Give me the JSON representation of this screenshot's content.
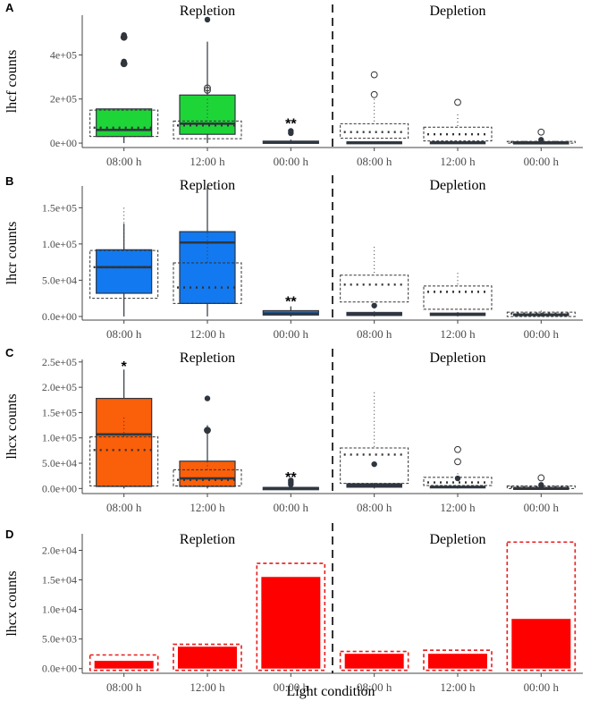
{
  "figure": {
    "xlabel": "Light condition"
  },
  "colors": {
    "lhcf": "#1ed538",
    "lhcr": "#1279f0",
    "lhcx": "#fa5f0a",
    "bar": "#ff0000",
    "bar_outline": "#e81c1c",
    "dark": "#2e3640",
    "axis": "#444444",
    "grid": "#e6e6e6"
  },
  "chart_data": [
    {
      "panel": "A",
      "type": "boxplot",
      "ylabel": "lhcf counts",
      "ylim": [
        -20000,
        580000
      ],
      "yticks": [
        0,
        200000,
        400000
      ],
      "ytick_labels": [
        "0e+00",
        "2e+05",
        "4e+05"
      ],
      "groups": [
        "Repletion",
        "Depletion"
      ],
      "categories": [
        "08:00 h",
        "12:00 h",
        "00:00 h",
        "08:00 h",
        "12:00 h",
        "00:00 h"
      ],
      "fill_color_key": "lhcf",
      "boxes": [
        {
          "q1": 30000,
          "median": 60000,
          "q3": 155000,
          "whislo": 0,
          "whishi": 155000,
          "outliers": [
            370000,
            360000,
            480000,
            490000
          ]
        },
        {
          "q1": 40000,
          "median": 88000,
          "q3": 218000,
          "whislo": 0,
          "whishi": 460000,
          "outliers": [
            560000
          ]
        },
        {
          "q1": 2000,
          "median": 5000,
          "q3": 9000,
          "whislo": 0,
          "whishi": 16000,
          "outliers": [
            45000,
            55000
          ]
        },
        {
          "q1": 1000,
          "median": 3000,
          "q3": 6000,
          "whislo": 0,
          "whishi": 7000,
          "outliers": []
        },
        {
          "q1": 1000,
          "median": 3000,
          "q3": 6000,
          "whislo": 0,
          "whishi": 7000,
          "outliers": []
        },
        {
          "q1": 1000,
          "median": 3000,
          "q3": 5000,
          "whislo": 0,
          "whishi": 6000,
          "outliers": [
            15000
          ]
        }
      ],
      "dotted_boxes": [
        {
          "q1": 30000,
          "median": 70000,
          "q3": 150000,
          "whislo": 0,
          "whishi": 150000,
          "outliers": [
            360000,
            480000
          ]
        },
        {
          "q1": 20000,
          "median": 80000,
          "q3": 100000,
          "whislo": 0,
          "whishi": 200000,
          "outliers": [
            240000,
            250000
          ]
        },
        null,
        {
          "q1": 22000,
          "median": 50000,
          "q3": 88000,
          "whislo": 0,
          "whishi": 200000,
          "outliers": [
            310000,
            220000
          ]
        },
        {
          "q1": 10000,
          "median": 40000,
          "q3": 72000,
          "whislo": 0,
          "whishi": 130000,
          "outliers": [
            185000
          ]
        },
        {
          "q1": 0,
          "median": 5000,
          "q3": 8000,
          "whislo": 0,
          "whishi": 9000,
          "outliers": [
            50000
          ]
        }
      ],
      "annotations": [
        {
          "category_index": 2,
          "text": "**",
          "y": 100000
        }
      ]
    },
    {
      "panel": "B",
      "type": "boxplot",
      "ylabel": "lhcr counts",
      "ylim": [
        -5000,
        180000
      ],
      "yticks": [
        0,
        50000,
        100000,
        150000
      ],
      "ytick_labels": [
        "0.0e+00",
        "5.0e+04",
        "1.0e+05",
        "1.5e+05"
      ],
      "groups": [
        "Repletion",
        "Depletion"
      ],
      "categories": [
        "08:00 h",
        "12:00 h",
        "00:00 h",
        "08:00 h",
        "12:00 h",
        "00:00 h"
      ],
      "fill_color_key": "lhcr",
      "boxes": [
        {
          "q1": 32000,
          "median": 68000,
          "q3": 92000,
          "whislo": 0,
          "whishi": 128000,
          "outliers": []
        },
        {
          "q1": 18000,
          "median": 102000,
          "q3": 117000,
          "whislo": 0,
          "whishi": 180000,
          "outliers": []
        },
        {
          "q1": 2000,
          "median": 4000,
          "q3": 8000,
          "whislo": 0,
          "whishi": 14000,
          "outliers": []
        },
        {
          "q1": 1000,
          "median": 3000,
          "q3": 6000,
          "whislo": 0,
          "whishi": 7000,
          "outliers": [
            15000
          ]
        },
        {
          "q1": 1000,
          "median": 3000,
          "q3": 5000,
          "whislo": 0,
          "whishi": 6000,
          "outliers": []
        },
        {
          "q1": 1000,
          "median": 2000,
          "q3": 4000,
          "whislo": 0,
          "whishi": 5000,
          "outliers": []
        }
      ],
      "dotted_boxes": [
        {
          "q1": 25000,
          "median": 68000,
          "q3": 91000,
          "whislo": 0,
          "whishi": 150000,
          "outliers": []
        },
        {
          "q1": 18000,
          "median": 40000,
          "q3": 74000,
          "whislo": 0,
          "whishi": 150000,
          "outliers": []
        },
        null,
        {
          "q1": 20000,
          "median": 44000,
          "q3": 57000,
          "whislo": 0,
          "whishi": 96000,
          "outliers": []
        },
        {
          "q1": 10000,
          "median": 34000,
          "q3": 42000,
          "whislo": 0,
          "whishi": 60000,
          "outliers": []
        },
        {
          "q1": 0,
          "median": 4000,
          "q3": 6000,
          "whislo": 0,
          "whishi": 8000,
          "outliers": []
        }
      ],
      "annotations": [
        {
          "category_index": 2,
          "text": "**",
          "y": 24000
        }
      ]
    },
    {
      "panel": "C",
      "type": "boxplot",
      "ylabel": "lhcx counts",
      "ylim": [
        -10000,
        255000
      ],
      "yticks": [
        0,
        50000,
        100000,
        150000,
        200000,
        250000
      ],
      "ytick_labels": [
        "0.0e+00",
        "5.0e+04",
        "1.0e+05",
        "1.5e+05",
        "2.0e+05",
        "2.5e+05"
      ],
      "groups": [
        "Repletion",
        "Depletion"
      ],
      "categories": [
        "08:00 h",
        "12:00 h",
        "00:00 h",
        "08:00 h",
        "12:00 h",
        "00:00 h"
      ],
      "fill_color_key": "lhcx",
      "boxes": [
        {
          "q1": 4000,
          "median": 107000,
          "q3": 178000,
          "whislo": 0,
          "whishi": 235000,
          "outliers": []
        },
        {
          "q1": 4000,
          "median": 20000,
          "q3": 54000,
          "whislo": 0,
          "whishi": 125000,
          "outliers": [
            178000,
            115000
          ]
        },
        {
          "q1": 0,
          "median": 1000,
          "q3": 2000,
          "whislo": 0,
          "whishi": 3000,
          "outliers": [
            8000,
            12000,
            16000
          ]
        },
        {
          "q1": 2000,
          "median": 7000,
          "q3": 10000,
          "whislo": 0,
          "whishi": 11000,
          "outliers": [
            48000
          ]
        },
        {
          "q1": 1000,
          "median": 3000,
          "q3": 5000,
          "whislo": 0,
          "whishi": 6000,
          "outliers": [
            20000
          ]
        },
        {
          "q1": 0,
          "median": 1000,
          "q3": 2000,
          "whislo": 0,
          "whishi": 3000,
          "outliers": [
            7000
          ]
        }
      ],
      "dotted_boxes": [
        {
          "q1": 5000,
          "median": 76000,
          "q3": 102000,
          "whislo": 0,
          "whishi": 140000,
          "outliers": []
        },
        {
          "q1": 5000,
          "median": 17000,
          "q3": 37000,
          "whislo": 0,
          "whishi": 60000,
          "outliers": [
            115000
          ]
        },
        null,
        {
          "q1": 10000,
          "median": 67000,
          "q3": 80000,
          "whislo": 0,
          "whishi": 190000,
          "outliers": []
        },
        {
          "q1": 6000,
          "median": 12000,
          "q3": 22000,
          "whislo": 0,
          "whishi": 30000,
          "outliers": [
            77000,
            53000
          ]
        },
        {
          "q1": 0,
          "median": 3000,
          "q3": 5000,
          "whislo": 0,
          "whishi": 6000,
          "outliers": [
            21000
          ]
        }
      ],
      "annotations": [
        {
          "category_index": 0,
          "text": "*",
          "y": 246000
        },
        {
          "category_index": 2,
          "text": "**",
          "y": 27000
        }
      ]
    },
    {
      "panel": "D",
      "type": "bar",
      "ylabel": "lhcx counts",
      "ylim": [
        -800,
        22800
      ],
      "yticks": [
        0,
        5000,
        10000,
        15000,
        20000
      ],
      "ytick_labels": [
        "0.0e+00",
        "5.0e+03",
        "1.0e+04",
        "1.5e+04",
        "2.0e+04"
      ],
      "groups": [
        "Repletion",
        "Depletion"
      ],
      "categories": [
        "08:00 h",
        "12:00 h",
        "00:00 h",
        "08:00 h",
        "12:00 h",
        "00:00 h"
      ],
      "values": [
        1300,
        3700,
        15500,
        2500,
        2500,
        8400
      ],
      "dashed_values": [
        2300,
        4100,
        17800,
        2900,
        3100,
        21400
      ]
    }
  ]
}
